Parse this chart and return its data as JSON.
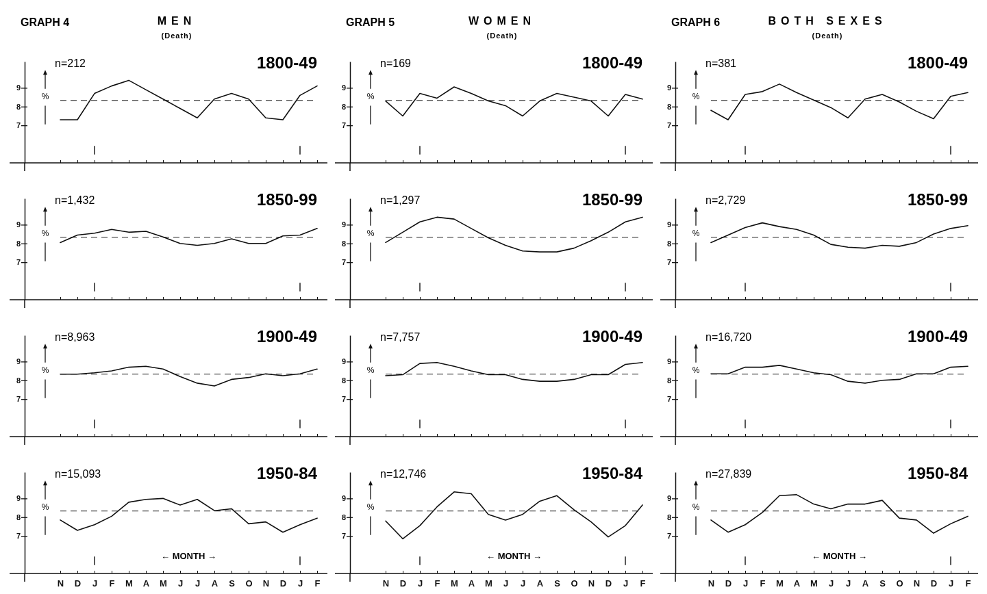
{
  "chart_data": [
    {
      "type": "line",
      "title": "1800-49",
      "annotations": [
        "n=212",
        "GRAPH 4",
        "MEN",
        "(Death)"
      ],
      "ylabel": "%",
      "tick_labels": "y",
      "categories": [
        null,
        null,
        null,
        null,
        null,
        null,
        null,
        null,
        null,
        null,
        null,
        null,
        null,
        null,
        null,
        null
      ],
      "color": "#111111",
      "values": [
        7.3,
        7.3,
        8.7,
        9.1,
        9.4,
        8.9,
        8.4,
        7.9,
        7.4,
        8.4,
        8.7,
        8.4,
        7.4,
        7.3,
        8.6,
        9.1
      ],
      "ylim": [
        5,
        10.4
      ],
      "yticks": [
        9,
        8,
        7
      ],
      "ref_lines": [
        {
          "axis": "y",
          "value": 8.33,
          "line_style": "dashed"
        }
      ]
    },
    {
      "type": "line",
      "title": "1800-49",
      "annotations": [
        "n=169",
        "GRAPH 5",
        "WOMEN",
        "(Death)"
      ],
      "ylabel": "%",
      "tick_labels": "y",
      "categories": [
        null,
        null,
        null,
        null,
        null,
        null,
        null,
        null,
        null,
        null,
        null,
        null,
        null,
        null,
        null,
        null
      ],
      "color": "#111111",
      "values": [
        8.3,
        7.5,
        8.7,
        8.45,
        9.05,
        8.7,
        8.3,
        8.05,
        7.5,
        8.3,
        8.7,
        8.5,
        8.3,
        7.5,
        8.65,
        8.4
      ],
      "ylim": [
        5,
        10.4
      ],
      "yticks": [
        9,
        8,
        7
      ],
      "ref_lines": [
        {
          "axis": "y",
          "value": 8.33,
          "line_style": "dashed"
        }
      ]
    },
    {
      "type": "line",
      "title": "1800-49",
      "annotations": [
        "n=381",
        "GRAPH 6",
        "BOTH SEXES",
        "(Death)"
      ],
      "ylabel": "%",
      "tick_labels": "y",
      "categories": [
        null,
        null,
        null,
        null,
        null,
        null,
        null,
        null,
        null,
        null,
        null,
        null,
        null,
        null,
        null,
        null
      ],
      "color": "#111111",
      "values": [
        7.8,
        7.3,
        8.65,
        8.8,
        9.2,
        8.75,
        8.35,
        7.95,
        7.4,
        8.4,
        8.65,
        8.25,
        7.75,
        7.35,
        8.55,
        8.75
      ],
      "ylim": [
        5,
        10.4
      ],
      "yticks": [
        9,
        8,
        7
      ],
      "ref_lines": [
        {
          "axis": "y",
          "value": 8.33,
          "line_style": "dashed"
        }
      ]
    },
    {
      "type": "line",
      "title": "1850-99",
      "annotations": [
        "n=1,432"
      ],
      "ylabel": "%",
      "tick_labels": "y",
      "categories": [
        null,
        null,
        null,
        null,
        null,
        null,
        null,
        null,
        null,
        null,
        null,
        null,
        null,
        null,
        null,
        null
      ],
      "color": "#111111",
      "values": [
        8.05,
        8.45,
        8.55,
        8.75,
        8.6,
        8.65,
        8.35,
        8.0,
        7.9,
        8.0,
        8.25,
        8.0,
        8.0,
        8.4,
        8.45,
        8.8
      ],
      "ylim": [
        5,
        10.4
      ],
      "yticks": [
        9,
        8,
        7
      ],
      "ref_lines": [
        {
          "axis": "y",
          "value": 8.33,
          "line_style": "dashed"
        }
      ]
    },
    {
      "type": "line",
      "title": "1850-99",
      "annotations": [
        "n=1,297"
      ],
      "ylabel": "%",
      "tick_labels": "y",
      "categories": [
        null,
        null,
        null,
        null,
        null,
        null,
        null,
        null,
        null,
        null,
        null,
        null,
        null,
        null,
        null,
        null
      ],
      "color": "#111111",
      "values": [
        8.05,
        8.6,
        9.15,
        9.4,
        9.3,
        8.8,
        8.3,
        7.9,
        7.6,
        7.55,
        7.55,
        7.75,
        8.15,
        8.6,
        9.15,
        9.4
      ],
      "ylim": [
        5,
        10.4
      ],
      "yticks": [
        9,
        8,
        7
      ],
      "ref_lines": [
        {
          "axis": "y",
          "value": 8.33,
          "line_style": "dashed"
        }
      ]
    },
    {
      "type": "line",
      "title": "1850-99",
      "annotations": [
        "n=2,729"
      ],
      "ylabel": "%",
      "tick_labels": "y",
      "categories": [
        null,
        null,
        null,
        null,
        null,
        null,
        null,
        null,
        null,
        null,
        null,
        null,
        null,
        null,
        null,
        null
      ],
      "color": "#111111",
      "values": [
        8.05,
        8.45,
        8.85,
        9.1,
        8.9,
        8.75,
        8.45,
        7.95,
        7.8,
        7.75,
        7.9,
        7.85,
        8.05,
        8.5,
        8.8,
        8.95
      ],
      "ylim": [
        5,
        10.4
      ],
      "yticks": [
        9,
        8,
        7
      ],
      "ref_lines": [
        {
          "axis": "y",
          "value": 8.33,
          "line_style": "dashed"
        }
      ]
    },
    {
      "type": "line",
      "title": "1900-49",
      "annotations": [
        "n=8,963"
      ],
      "ylabel": "%",
      "tick_labels": "y",
      "categories": [
        null,
        null,
        null,
        null,
        null,
        null,
        null,
        null,
        null,
        null,
        null,
        null,
        null,
        null,
        null,
        null
      ],
      "color": "#111111",
      "values": [
        8.33,
        8.33,
        8.4,
        8.5,
        8.7,
        8.75,
        8.6,
        8.2,
        7.85,
        7.7,
        8.05,
        8.15,
        8.35,
        8.25,
        8.35,
        8.6
      ],
      "ylim": [
        5,
        10.4
      ],
      "yticks": [
        9,
        8,
        7
      ],
      "ref_lines": [
        {
          "axis": "y",
          "value": 8.33,
          "line_style": "dashed"
        }
      ]
    },
    {
      "type": "line",
      "title": "1900-49",
      "annotations": [
        "n=7,757"
      ],
      "ylabel": "%",
      "tick_labels": "y",
      "categories": [
        null,
        null,
        null,
        null,
        null,
        null,
        null,
        null,
        null,
        null,
        null,
        null,
        null,
        null,
        null,
        null
      ],
      "color": "#111111",
      "values": [
        8.25,
        8.3,
        8.9,
        8.95,
        8.75,
        8.5,
        8.3,
        8.3,
        8.05,
        7.95,
        7.95,
        8.05,
        8.3,
        8.3,
        8.85,
        8.95
      ],
      "ylim": [
        5,
        10.4
      ],
      "yticks": [
        9,
        8,
        7
      ],
      "ref_lines": [
        {
          "axis": "y",
          "value": 8.33,
          "line_style": "dashed"
        }
      ]
    },
    {
      "type": "line",
      "title": "1900-49",
      "annotations": [
        "n=16,720"
      ],
      "ylabel": "%",
      "tick_labels": "y",
      "categories": [
        null,
        null,
        null,
        null,
        null,
        null,
        null,
        null,
        null,
        null,
        null,
        null,
        null,
        null,
        null,
        null
      ],
      "color": "#111111",
      "values": [
        8.35,
        8.35,
        8.7,
        8.7,
        8.8,
        8.6,
        8.4,
        8.3,
        7.95,
        7.85,
        8.0,
        8.05,
        8.35,
        8.35,
        8.7,
        8.75
      ],
      "ylim": [
        5,
        10.4
      ],
      "yticks": [
        9,
        8,
        7
      ],
      "ref_lines": [
        {
          "axis": "y",
          "value": 8.33,
          "line_style": "dashed"
        }
      ]
    },
    {
      "type": "line",
      "title": "1950-84",
      "annotations": [
        "n=15,093"
      ],
      "ylabel": "%",
      "xlabel": "← MONTH →",
      "categories": [
        "N",
        "D",
        "J",
        "F",
        "M",
        "A",
        "M",
        "J",
        "J",
        "A",
        "S",
        "O",
        "N",
        "D",
        "J",
        "F"
      ],
      "color": "#111111",
      "values": [
        7.85,
        7.3,
        7.6,
        8.05,
        8.8,
        8.95,
        9.0,
        8.65,
        8.95,
        8.35,
        8.45,
        7.65,
        7.75,
        7.2,
        7.6,
        7.95
      ],
      "ylim": [
        5,
        10.4
      ],
      "yticks": [
        9,
        8,
        7
      ],
      "ref_lines": [
        {
          "axis": "y",
          "value": 8.33,
          "line_style": "dashed"
        }
      ]
    },
    {
      "type": "line",
      "title": "1950-84",
      "annotations": [
        "n=12,746"
      ],
      "ylabel": "%",
      "xlabel": "← MONTH →",
      "categories": [
        "N",
        "D",
        "J",
        "F",
        "M",
        "A",
        "M",
        "J",
        "J",
        "A",
        "S",
        "O",
        "N",
        "D",
        "J",
        "F"
      ],
      "color": "#111111",
      "values": [
        7.8,
        6.85,
        7.55,
        8.55,
        9.35,
        9.25,
        8.15,
        7.85,
        8.15,
        8.85,
        9.15,
        8.4,
        7.75,
        6.95,
        7.55,
        8.65
      ],
      "ylim": [
        5,
        10.4
      ],
      "yticks": [
        9,
        8,
        7
      ],
      "ref_lines": [
        {
          "axis": "y",
          "value": 8.33,
          "line_style": "dashed"
        }
      ]
    },
    {
      "type": "line",
      "title": "1950-84",
      "annotations": [
        "n=27,839"
      ],
      "ylabel": "%",
      "xlabel": "← MONTH →",
      "categories": [
        "N",
        "D",
        "J",
        "F",
        "M",
        "A",
        "M",
        "J",
        "J",
        "A",
        "S",
        "O",
        "N",
        "D",
        "J",
        "F"
      ],
      "color": "#111111",
      "values": [
        7.85,
        7.2,
        7.6,
        8.25,
        9.15,
        9.2,
        8.7,
        8.45,
        8.7,
        8.7,
        8.9,
        7.95,
        7.85,
        7.15,
        7.65,
        8.05
      ],
      "ylim": [
        5,
        10.4
      ],
      "yticks": [
        9,
        8,
        7
      ],
      "ref_lines": [
        {
          "axis": "y",
          "value": 8.33,
          "line_style": "dashed"
        }
      ]
    }
  ]
}
